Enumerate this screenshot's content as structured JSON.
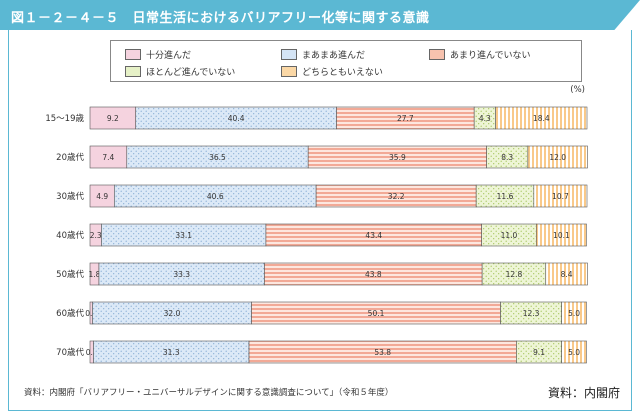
{
  "figure": {
    "title": "図１－２－４－５　日常生活におけるバリアフリー化等に関する意識",
    "note": "資料：内閣府「バリアフリー・ユニバーサルデザインに関する意識調査について」（令和５年度）",
    "credit": "資料：内閣府"
  },
  "legend": [
    {
      "label": "十分進んだ"
    },
    {
      "label": "まあまあ進んだ"
    },
    {
      "label": "あまり進んでいない"
    },
    {
      "label": "ほとんど進んでいない"
    },
    {
      "label": "どちらともいえない"
    }
  ],
  "colors": {
    "header": "#5bb8d3",
    "series": [
      "#f5d3df",
      "#d4e4f5",
      "#f7c2ae",
      "#e6f1c7",
      "#fbd8a6"
    ]
  },
  "chart_data": {
    "type": "bar",
    "orientation": "horizontal",
    "stacked": true,
    "unit": "(%)",
    "categories": [
      "15～19歳",
      "20歳代",
      "30歳代",
      "40歳代",
      "50歳代",
      "60歳代",
      "70歳代"
    ],
    "series": [
      {
        "name": "十分進んだ",
        "values": [
          9.2,
          7.4,
          4.9,
          2.3,
          1.8,
          0.5,
          0.7
        ]
      },
      {
        "name": "まあまあ進んだ",
        "values": [
          40.4,
          36.5,
          40.6,
          33.1,
          33.3,
          32.0,
          31.3
        ]
      },
      {
        "name": "あまり進んでいない",
        "values": [
          27.7,
          35.9,
          32.2,
          43.4,
          43.8,
          50.1,
          53.8
        ]
      },
      {
        "name": "ほとんど進んでいない",
        "values": [
          4.3,
          8.3,
          11.6,
          11.0,
          12.8,
          12.3,
          9.1
        ]
      },
      {
        "name": "どちらともいえない",
        "values": [
          18.4,
          12.0,
          10.7,
          10.1,
          8.4,
          5.0,
          5.0
        ]
      }
    ],
    "xlim": [
      0,
      100
    ]
  }
}
